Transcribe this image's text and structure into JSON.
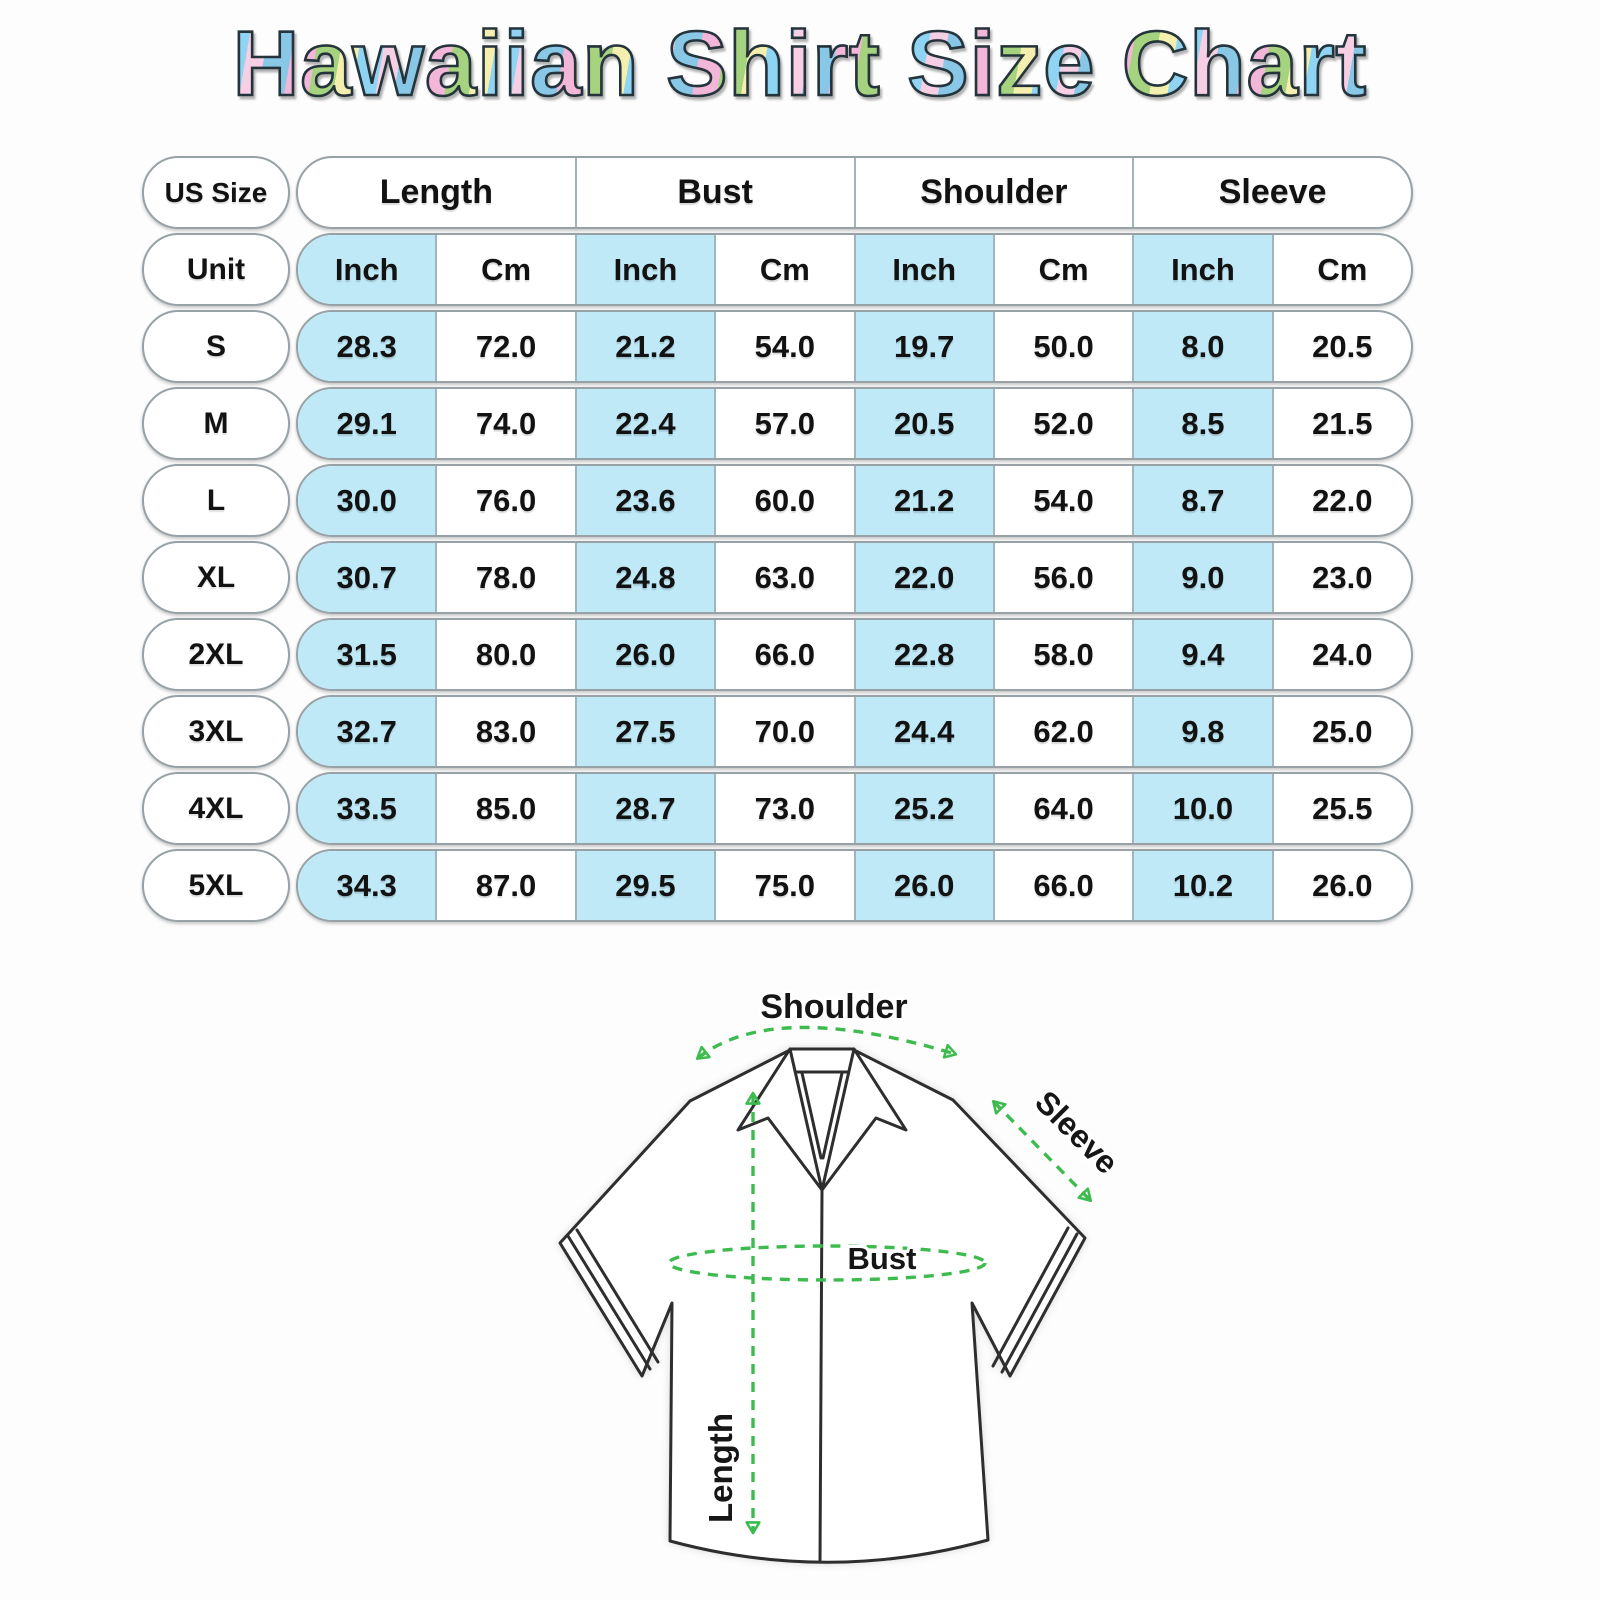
{
  "title": "Hawaiian Shirt Size Chart",
  "table": {
    "corner_label": "US Size",
    "unit_label": "Unit",
    "column_groups": [
      "Length",
      "Bust",
      "Shoulder",
      "Sleeve"
    ],
    "unit_row": [
      "Inch",
      "Cm",
      "Inch",
      "Cm",
      "Inch",
      "Cm",
      "Inch",
      "Cm"
    ],
    "rows": [
      {
        "size": "S",
        "values": [
          "28.3",
          "72.0",
          "21.2",
          "54.0",
          "19.7",
          "50.0",
          "8.0",
          "20.5"
        ]
      },
      {
        "size": "M",
        "values": [
          "29.1",
          "74.0",
          "22.4",
          "57.0",
          "20.5",
          "52.0",
          "8.5",
          "21.5"
        ]
      },
      {
        "size": "L",
        "values": [
          "30.0",
          "76.0",
          "23.6",
          "60.0",
          "21.2",
          "54.0",
          "8.7",
          "22.0"
        ]
      },
      {
        "size": "XL",
        "values": [
          "30.7",
          "78.0",
          "24.8",
          "63.0",
          "22.0",
          "56.0",
          "9.0",
          "23.0"
        ]
      },
      {
        "size": "2XL",
        "values": [
          "31.5",
          "80.0",
          "26.0",
          "66.0",
          "22.8",
          "58.0",
          "9.4",
          "24.0"
        ]
      },
      {
        "size": "3XL",
        "values": [
          "32.7",
          "83.0",
          "27.5",
          "70.0",
          "24.4",
          "62.0",
          "9.8",
          "25.0"
        ]
      },
      {
        "size": "4XL",
        "values": [
          "33.5",
          "85.0",
          "28.7",
          "73.0",
          "25.2",
          "64.0",
          "10.0",
          "25.5"
        ]
      },
      {
        "size": "5XL",
        "values": [
          "34.3",
          "87.0",
          "29.5",
          "75.0",
          "26.0",
          "66.0",
          "10.2",
          "26.0"
        ]
      }
    ]
  },
  "diagram": {
    "shoulder_label": "Shoulder",
    "sleeve_label": "Sleeve",
    "bust_label": "Bust",
    "length_label": "Length"
  },
  "colors": {
    "highlight_blue": "#bfe9f7",
    "annotation_green": "#3dbb4e",
    "outline_dark": "#2e2e2e"
  },
  "chart_data": {
    "type": "table",
    "title": "Hawaiian Shirt Size Chart",
    "columns": [
      "US Size",
      "Length Inch",
      "Length Cm",
      "Bust Inch",
      "Bust Cm",
      "Shoulder Inch",
      "Shoulder Cm",
      "Sleeve Inch",
      "Sleeve Cm"
    ],
    "rows": [
      [
        "S",
        28.3,
        72.0,
        21.2,
        54.0,
        19.7,
        50.0,
        8.0,
        20.5
      ],
      [
        "M",
        29.1,
        74.0,
        22.4,
        57.0,
        20.5,
        52.0,
        8.5,
        21.5
      ],
      [
        "L",
        30.0,
        76.0,
        23.6,
        60.0,
        21.2,
        54.0,
        8.7,
        22.0
      ],
      [
        "XL",
        30.7,
        78.0,
        24.8,
        63.0,
        22.0,
        56.0,
        9.0,
        23.0
      ],
      [
        "2XL",
        31.5,
        80.0,
        26.0,
        66.0,
        22.8,
        58.0,
        9.4,
        24.0
      ],
      [
        "3XL",
        32.7,
        83.0,
        27.5,
        70.0,
        24.4,
        62.0,
        9.8,
        25.0
      ],
      [
        "4XL",
        33.5,
        85.0,
        28.7,
        73.0,
        25.2,
        64.0,
        10.0,
        25.5
      ],
      [
        "5XL",
        34.3,
        87.0,
        29.5,
        75.0,
        26.0,
        66.0,
        10.2,
        26.0
      ]
    ],
    "highlighted_columns": [
      "Length Inch",
      "Bust Inch",
      "Shoulder Inch",
      "Sleeve Inch"
    ],
    "legend_position": "none",
    "grid": false
  }
}
